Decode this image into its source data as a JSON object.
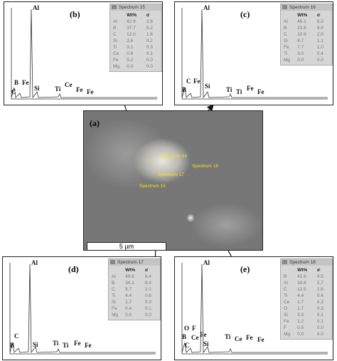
{
  "image": {
    "label": "(a)",
    "scale_bar": "5 µm",
    "spots": [
      "Spectrum 16",
      "Spectrum 17",
      "Spectrum 18",
      "Spectrum 15"
    ]
  },
  "panels": [
    {
      "label": "(b)",
      "spectrum": "Spectrum 15",
      "header": [
        "Wt%",
        "σ"
      ],
      "rows": [
        [
          "Al",
          "42.9",
          "3.6"
        ],
        [
          "B",
          "37.7",
          "5.2"
        ],
        [
          "C",
          "12.0",
          "1.6"
        ],
        [
          "Si",
          "3.6",
          "0.2"
        ],
        [
          "Ti",
          "3.1",
          "0.3"
        ],
        [
          "Ce",
          "0.8",
          "0.1"
        ],
        [
          "Fe",
          "0.2",
          "0.0"
        ],
        [
          "Mg",
          "0.0",
          "0.0"
        ]
      ],
      "peaks": [
        "Al",
        "B",
        "Fe",
        "C",
        "Si",
        "Ti",
        "Ce",
        "Fe",
        "Fe"
      ]
    },
    {
      "label": "(c)",
      "spectrum": "Spectrum 16",
      "header": [
        "Wt%",
        "σ"
      ],
      "rows": [
        [
          "Al",
          "46.1",
          "6.0"
        ],
        [
          "B",
          "23.6",
          "9.9"
        ],
        [
          "C",
          "10.9",
          "2.0"
        ],
        [
          "Si",
          "8.7",
          "1.1"
        ],
        [
          "Fe",
          "7.7",
          "1.0"
        ],
        [
          "Ti",
          "3.0",
          "0.4"
        ],
        [
          "Mg",
          "0.0",
          "0.0"
        ]
      ],
      "peaks": [
        "Al",
        "C",
        "Fe",
        "B",
        "Si",
        "Ti",
        "Ti",
        "Fe",
        "Fe"
      ]
    },
    {
      "label": "(d)",
      "spectrum": "Spectrum 17",
      "header": [
        "Wt%",
        "σ"
      ],
      "rows": [
        [
          "Al",
          "49.6",
          "6.4"
        ],
        [
          "B",
          "34.1",
          "8.4"
        ],
        [
          "C",
          "9.7",
          "2.1"
        ],
        [
          "Ti",
          "4.4",
          "0.6"
        ],
        [
          "Si",
          "1.7",
          "0.3"
        ],
        [
          "Fe",
          "0.4",
          "0.1"
        ],
        [
          "Mg",
          "0.0",
          "0.0"
        ]
      ],
      "peaks": [
        "Al",
        "C",
        "B",
        "Si",
        "Ti",
        "Ti",
        "Fe",
        "Fe"
      ]
    },
    {
      "label": "(e)",
      "spectrum": "Spectrum 18",
      "header": [
        "Wt%",
        "σ"
      ],
      "rows": [
        [
          "B",
          "41.6",
          "4.5"
        ],
        [
          "Al",
          "34.8",
          "2.7"
        ],
        [
          "C",
          "12.5",
          "1.6"
        ],
        [
          "Ti",
          "4.4",
          "0.4"
        ],
        [
          "Ce",
          "1.7",
          "0.3"
        ],
        [
          "O",
          "1.7",
          "0.3"
        ],
        [
          "Si",
          "3.3",
          "0.1"
        ],
        [
          "Fe",
          "1.2",
          "0.1"
        ],
        [
          "F",
          "0.5",
          "0.0"
        ],
        [
          "Mg",
          "0.0",
          "0.0"
        ]
      ],
      "peaks": [
        "Al",
        "O",
        "F",
        "B",
        "Ce",
        "Fe",
        "C",
        "Si",
        "Ti",
        "Ce",
        "Fe",
        "Fe"
      ]
    }
  ]
}
